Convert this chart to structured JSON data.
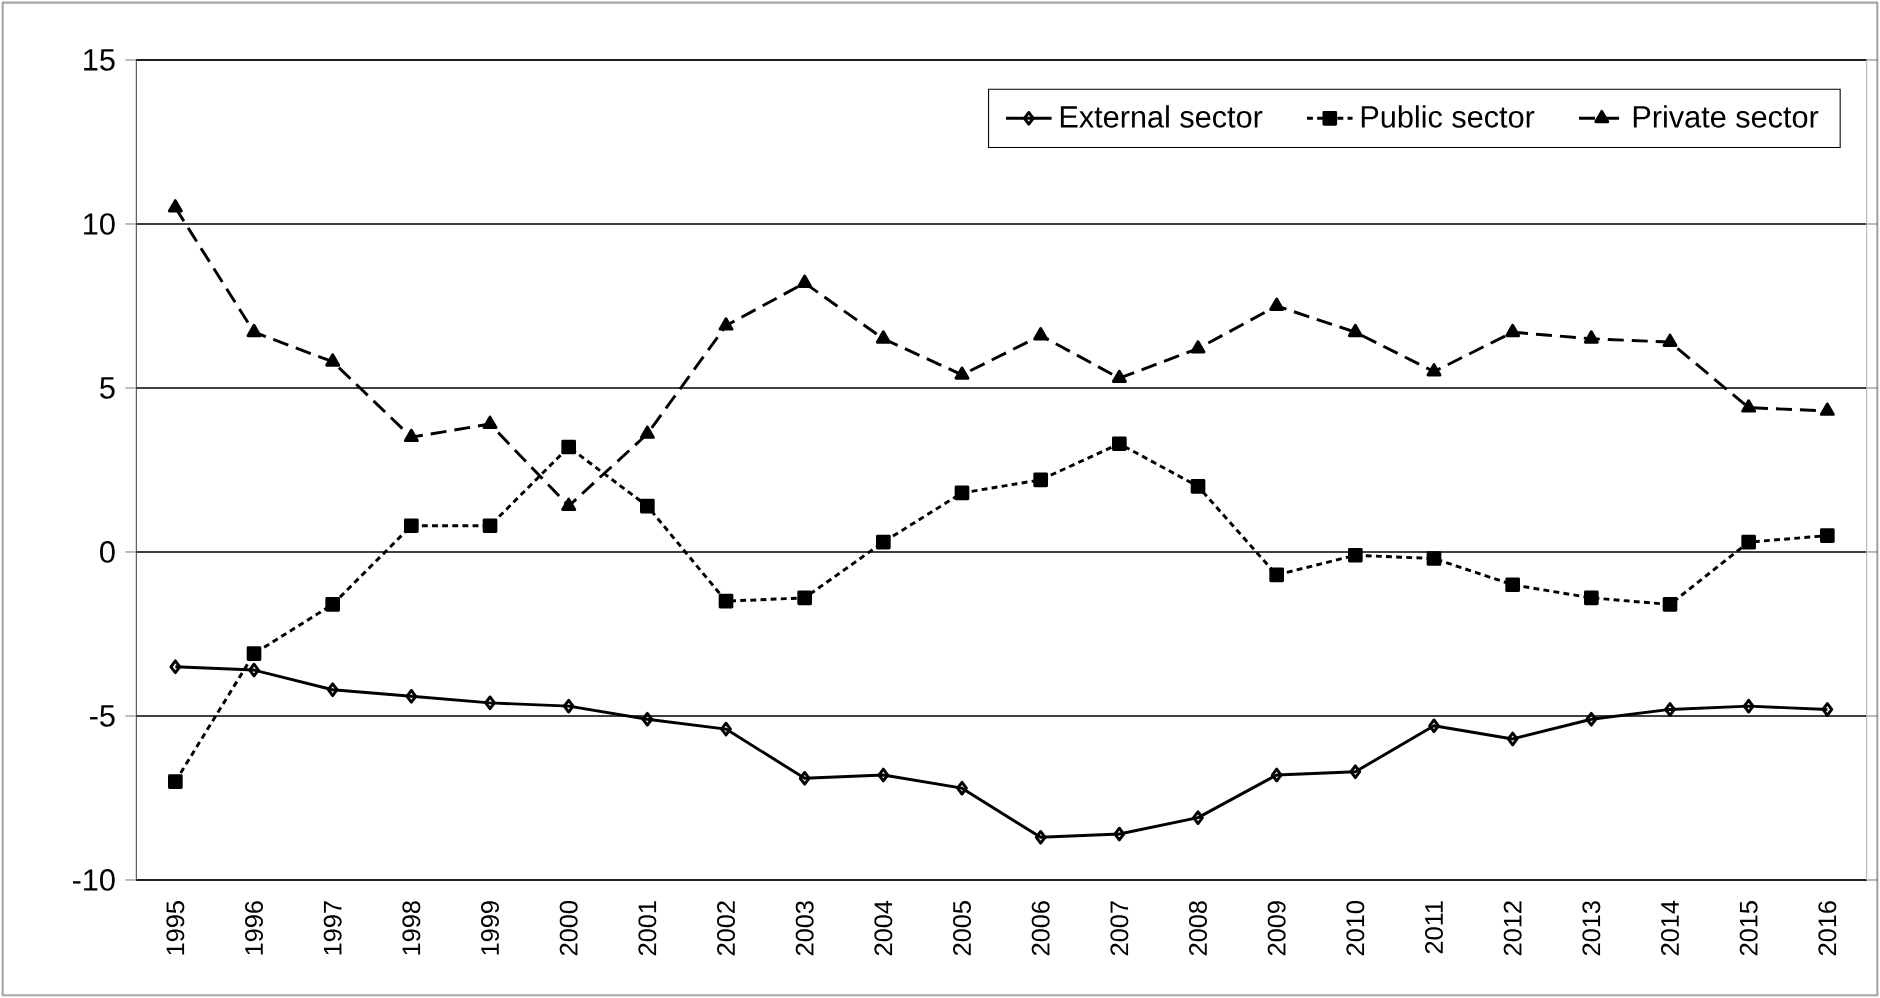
{
  "chart_data": {
    "type": "line",
    "categories": [
      "1995",
      "1996",
      "1997",
      "1998",
      "1999",
      "2000",
      "2001",
      "2002",
      "2003",
      "2004",
      "2005",
      "2006",
      "2007",
      "2008",
      "2009",
      "2010",
      "2011",
      "2012",
      "2013",
      "2014",
      "2015",
      "2016"
    ],
    "series": [
      {
        "name": "External sector",
        "color": "#000000",
        "marker": "diamond",
        "line_style": "solid",
        "values": [
          -3.5,
          -3.6,
          -4.2,
          -4.4,
          -4.6,
          -4.7,
          -5.1,
          -5.4,
          -6.9,
          -6.8,
          -7.2,
          -8.7,
          -8.6,
          -8.1,
          -6.8,
          -6.7,
          -5.3,
          -5.7,
          -5.1,
          -4.8,
          -4.7,
          -4.8
        ]
      },
      {
        "name": "Public sector",
        "color": "#000000",
        "marker": "square",
        "line_style": "dotted",
        "values": [
          -7.0,
          -3.1,
          -1.6,
          0.8,
          0.8,
          3.2,
          1.4,
          -1.5,
          -1.4,
          0.3,
          1.8,
          2.2,
          3.3,
          2.0,
          -0.7,
          -0.1,
          -0.2,
          -1.0,
          -1.4,
          -1.6,
          0.3,
          0.5
        ]
      },
      {
        "name": "Private sector",
        "color": "#000000",
        "marker": "triangle",
        "line_style": "dashed",
        "values": [
          10.5,
          6.7,
          5.8,
          3.5,
          3.9,
          1.4,
          3.6,
          6.9,
          8.2,
          6.5,
          5.4,
          6.6,
          5.3,
          6.2,
          7.5,
          6.7,
          5.5,
          6.7,
          6.5,
          6.4,
          4.4,
          4.3
        ]
      }
    ],
    "ylim": [
      -10,
      15
    ],
    "yticks": [
      -10,
      -5,
      0,
      5,
      10,
      15
    ],
    "grid": "y",
    "legend": "top right"
  }
}
